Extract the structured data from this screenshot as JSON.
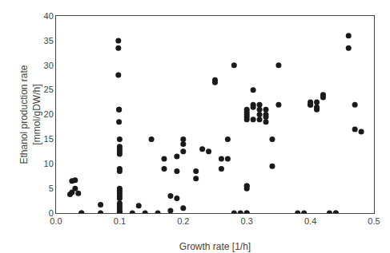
{
  "chart_data": {
    "type": "scatter",
    "x": [
      0.022,
      0.025,
      0.025,
      0.03,
      0.03,
      0.035,
      0.04,
      0.04,
      0.07,
      0.07,
      0.098,
      0.098,
      0.098,
      0.099,
      0.099,
      0.099,
      0.1,
      0.1,
      0.1,
      0.1,
      0.1,
      0.1,
      0.1,
      0.1,
      0.1,
      0.1,
      0.1,
      0.1,
      0.1,
      0.1,
      0.1,
      0.1,
      0.1,
      0.1,
      0.1,
      0.1,
      0.12,
      0.13,
      0.14,
      0.15,
      0.16,
      0.17,
      0.17,
      0.18,
      0.18,
      0.19,
      0.19,
      0.19,
      0.2,
      0.2,
      0.2,
      0.2,
      0.22,
      0.22,
      0.23,
      0.24,
      0.25,
      0.25,
      0.26,
      0.26,
      0.27,
      0.27,
      0.28,
      0.28,
      0.29,
      0.3,
      0.3,
      0.3,
      0.3,
      0.3,
      0.3,
      0.3,
      0.3,
      0.3,
      0.3,
      0.31,
      0.31,
      0.31,
      0.31,
      0.32,
      0.32,
      0.32,
      0.32,
      0.33,
      0.33,
      0.33,
      0.33,
      0.34,
      0.34,
      0.35,
      0.35,
      0.38,
      0.39,
      0.4,
      0.4,
      0.4,
      0.41,
      0.41,
      0.41,
      0.42,
      0.42,
      0.43,
      0.44,
      0.44,
      0.46,
      0.46,
      0.47,
      0.47,
      0.48
    ],
    "values": [
      3.8,
      4.2,
      6.5,
      5.0,
      6.7,
      4.0,
      0.0,
      0.0,
      0.0,
      1.7,
      35.0,
      33.5,
      28.0,
      21.0,
      21.0,
      18.5,
      15.0,
      13.5,
      13.0,
      12.5,
      12.0,
      9.0,
      8.5,
      5.0,
      4.5,
      4.0,
      3.5,
      3.0,
      2.0,
      1.5,
      1.0,
      0.5,
      0.2,
      0.1,
      0.0,
      0.0,
      0.0,
      1.5,
      0.0,
      15.0,
      0.0,
      9.0,
      11.0,
      0.5,
      3.5,
      3.0,
      8.5,
      11.5,
      1.0,
      12.5,
      14.0,
      15.0,
      7.0,
      8.5,
      13.0,
      12.5,
      27.0,
      26.5,
      9.0,
      11.0,
      15.0,
      11.0,
      30.0,
      0.0,
      0.0,
      5.5,
      5.0,
      5.5,
      19.0,
      20.0,
      21.0,
      20.5,
      19.5,
      0.0,
      0.0,
      25.0,
      22.0,
      21.5,
      19.0,
      22.0,
      21.0,
      20.0,
      19.0,
      21.0,
      20.0,
      19.5,
      18.5,
      9.5,
      15.0,
      22.0,
      30.0,
      0.0,
      0.0,
      22.0,
      22.5,
      22.0,
      21.5,
      21.0,
      22.5,
      23.5,
      24.0,
      0.0,
      0.0,
      0.0,
      36.0,
      33.5,
      22.0,
      17.0,
      16.5
    ],
    "xlim": [
      0.0,
      0.5
    ],
    "ylim": [
      0,
      40
    ],
    "xticks": [
      {
        "value": 0.0,
        "label": "0.0"
      },
      0.1,
      0.2,
      0.3,
      0.4,
      0.5
    ],
    "yticks": [
      0,
      5,
      10,
      15,
      20,
      25,
      30,
      35,
      40
    ],
    "xlabel": "Growth rate [1/h]",
    "ylabel": "Ethanol production rate\n[mmol/gDW/h]",
    "color": "#1a1a1a",
    "grid": false
  }
}
